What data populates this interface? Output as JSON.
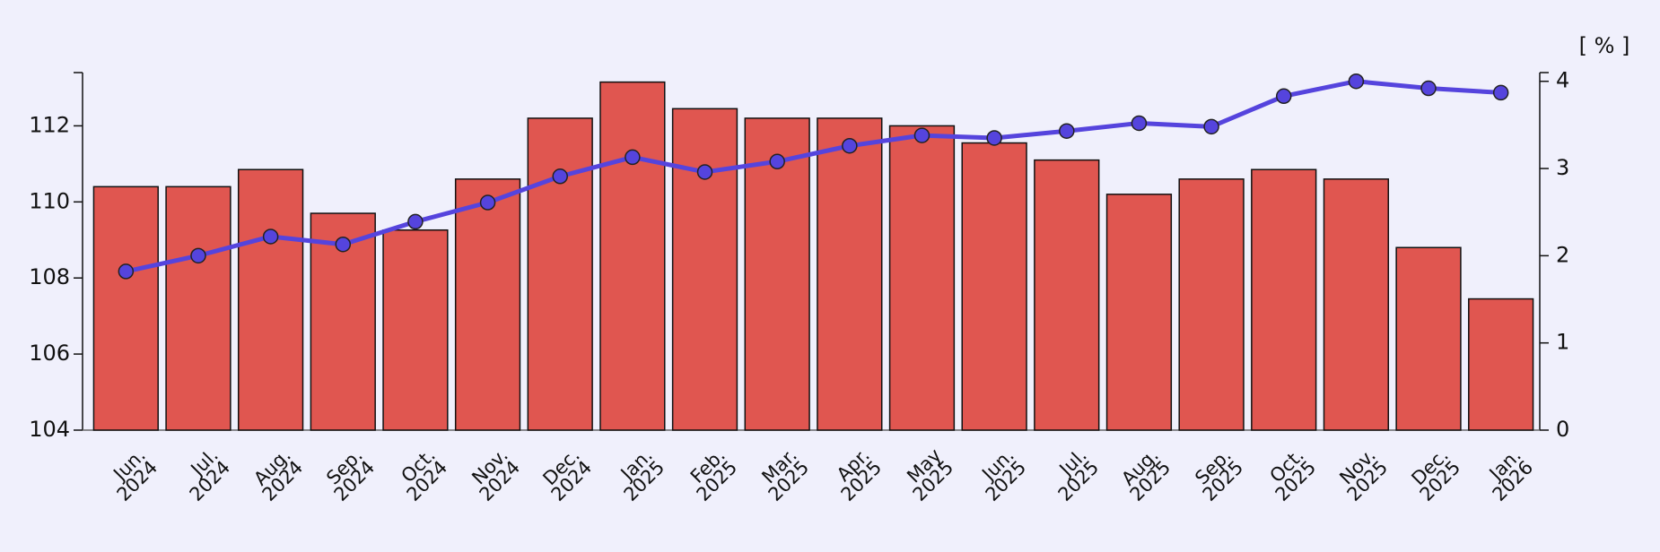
{
  "chart_data": {
    "type": "bar",
    "unit_label": "[ % ]",
    "categories": [
      "Jun.\n2024",
      "Jul.\n2024",
      "Aug.\n2024",
      "Sep.\n2024",
      "Oct.\n2024",
      "Nov.\n2024",
      "Dec.\n2024",
      "Jan.\n2025",
      "Feb.\n2025",
      "Mar.\n2025",
      "Apr.\n2025",
      "May\n2025",
      "Jun.\n2025",
      "Jul.\n2025",
      "Aug.\n2025",
      "Sep.\n2025",
      "Oct.\n2025",
      "Nov.\n2025",
      "Dec.\n2025",
      "Jan.\n2026"
    ],
    "series": [
      {
        "type": "bar",
        "axis": "y",
        "color": "#e05650",
        "values": [
          110.4,
          110.4,
          110.85,
          109.7,
          109.26,
          110.6,
          112.2,
          113.15,
          112.45,
          112.2,
          112.2,
          112.0,
          111.55,
          111.1,
          110.2,
          110.6,
          110.85,
          110.6,
          108.8,
          107.45
        ]
      },
      {
        "type": "line",
        "axis": "y2",
        "color": "#5544dd",
        "values": [
          1.82,
          2.0,
          2.22,
          2.13,
          2.39,
          2.61,
          2.91,
          3.13,
          2.96,
          3.08,
          3.26,
          3.38,
          3.35,
          3.43,
          3.52,
          3.48,
          3.83,
          4.0,
          3.92,
          3.87
        ]
      }
    ],
    "ylim": [
      104,
      113.4
    ],
    "yticks": [
      104,
      106,
      108,
      110,
      112
    ],
    "y2lim": [
      0,
      4.1
    ],
    "y2ticks": [
      0,
      1,
      2,
      3,
      4
    ]
  }
}
